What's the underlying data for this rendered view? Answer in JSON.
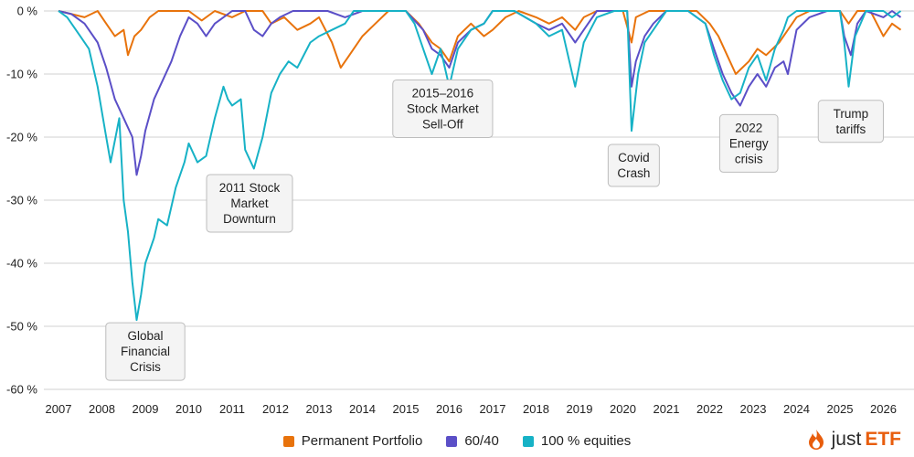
{
  "chart_data": {
    "type": "line",
    "ylim": [
      -60,
      0
    ],
    "xlim": [
      2007,
      2026.4
    ],
    "y_ticks": [
      "0 %",
      "-10 %",
      "-20 %",
      "-30 %",
      "-40 %",
      "-50 %",
      "-60 %"
    ],
    "y_tick_values": [
      0,
      -10,
      -20,
      -30,
      -40,
      -50,
      -60
    ],
    "x_ticks": [
      "2007",
      "2008",
      "2009",
      "2010",
      "2011",
      "2012",
      "2013",
      "2014",
      "2015",
      "2016",
      "2017",
      "2018",
      "2019",
      "2020",
      "2021",
      "2022",
      "2023",
      "2024",
      "2025",
      "2026"
    ],
    "grid": true,
    "legend": "bottom",
    "series": [
      {
        "name": "Permanent Portfolio",
        "color": "#e8730c",
        "points": [
          [
            2007.0,
            0
          ],
          [
            2007.3,
            -0.5
          ],
          [
            2007.6,
            -1
          ],
          [
            2007.9,
            0
          ],
          [
            2008.1,
            -2
          ],
          [
            2008.3,
            -4
          ],
          [
            2008.5,
            -3
          ],
          [
            2008.6,
            -7
          ],
          [
            2008.75,
            -4
          ],
          [
            2008.9,
            -3
          ],
          [
            2009.1,
            -1
          ],
          [
            2009.3,
            0
          ],
          [
            2009.6,
            0
          ],
          [
            2010.0,
            0
          ],
          [
            2010.3,
            -1.5
          ],
          [
            2010.6,
            0
          ],
          [
            2011.0,
            -1
          ],
          [
            2011.3,
            0
          ],
          [
            2011.7,
            0
          ],
          [
            2011.9,
            -2
          ],
          [
            2012.2,
            -1
          ],
          [
            2012.5,
            -3
          ],
          [
            2012.8,
            -2
          ],
          [
            2013.0,
            -1
          ],
          [
            2013.3,
            -5
          ],
          [
            2013.5,
            -9
          ],
          [
            2013.7,
            -7
          ],
          [
            2014.0,
            -4
          ],
          [
            2014.3,
            -2
          ],
          [
            2014.6,
            0
          ],
          [
            2015.0,
            0
          ],
          [
            2015.3,
            -2
          ],
          [
            2015.6,
            -5
          ],
          [
            2015.8,
            -6
          ],
          [
            2016.0,
            -8
          ],
          [
            2016.2,
            -4
          ],
          [
            2016.5,
            -2
          ],
          [
            2016.8,
            -4
          ],
          [
            2017.0,
            -3
          ],
          [
            2017.3,
            -1
          ],
          [
            2017.6,
            0
          ],
          [
            2018.0,
            -1
          ],
          [
            2018.3,
            -2
          ],
          [
            2018.6,
            -1
          ],
          [
            2018.9,
            -3
          ],
          [
            2019.1,
            -1
          ],
          [
            2019.4,
            0
          ],
          [
            2019.8,
            0
          ],
          [
            2020.0,
            0
          ],
          [
            2020.2,
            -5
          ],
          [
            2020.3,
            -1
          ],
          [
            2020.6,
            0
          ],
          [
            2021.0,
            0
          ],
          [
            2021.3,
            0
          ],
          [
            2021.7,
            0
          ],
          [
            2022.0,
            -2
          ],
          [
            2022.2,
            -4
          ],
          [
            2022.4,
            -7
          ],
          [
            2022.6,
            -10
          ],
          [
            2022.75,
            -9
          ],
          [
            2022.9,
            -8
          ],
          [
            2023.1,
            -6
          ],
          [
            2023.3,
            -7
          ],
          [
            2023.6,
            -5
          ],
          [
            2023.8,
            -3
          ],
          [
            2024.0,
            -1
          ],
          [
            2024.3,
            0
          ],
          [
            2024.7,
            0
          ],
          [
            2025.0,
            0
          ],
          [
            2025.2,
            -2
          ],
          [
            2025.4,
            0
          ],
          [
            2025.7,
            0
          ],
          [
            2026.0,
            -4
          ],
          [
            2026.2,
            -2
          ],
          [
            2026.4,
            -3
          ]
        ]
      },
      {
        "name": "60/40",
        "color": "#5b4fc7",
        "points": [
          [
            2007.0,
            0
          ],
          [
            2007.3,
            -0.5
          ],
          [
            2007.6,
            -2
          ],
          [
            2007.9,
            -5
          ],
          [
            2008.1,
            -9
          ],
          [
            2008.3,
            -14
          ],
          [
            2008.5,
            -17
          ],
          [
            2008.7,
            -20
          ],
          [
            2008.8,
            -26
          ],
          [
            2008.9,
            -23
          ],
          [
            2009.0,
            -19
          ],
          [
            2009.2,
            -14
          ],
          [
            2009.4,
            -11
          ],
          [
            2009.6,
            -8
          ],
          [
            2009.8,
            -4
          ],
          [
            2010.0,
            -1
          ],
          [
            2010.2,
            -2
          ],
          [
            2010.4,
            -4
          ],
          [
            2010.6,
            -2
          ],
          [
            2010.8,
            -1
          ],
          [
            2011.0,
            0
          ],
          [
            2011.3,
            0
          ],
          [
            2011.5,
            -3
          ],
          [
            2011.7,
            -4
          ],
          [
            2011.9,
            -2
          ],
          [
            2012.1,
            -1
          ],
          [
            2012.4,
            0
          ],
          [
            2012.8,
            0
          ],
          [
            2013.2,
            0
          ],
          [
            2013.6,
            -1
          ],
          [
            2014.0,
            0
          ],
          [
            2014.5,
            0
          ],
          [
            2015.0,
            0
          ],
          [
            2015.4,
            -3
          ],
          [
            2015.6,
            -6
          ],
          [
            2015.8,
            -7
          ],
          [
            2016.0,
            -9
          ],
          [
            2016.2,
            -5
          ],
          [
            2016.5,
            -3
          ],
          [
            2016.8,
            -2
          ],
          [
            2017.0,
            0
          ],
          [
            2017.5,
            0
          ],
          [
            2018.0,
            -2
          ],
          [
            2018.3,
            -3
          ],
          [
            2018.6,
            -2
          ],
          [
            2018.9,
            -5
          ],
          [
            2019.1,
            -3
          ],
          [
            2019.4,
            0
          ],
          [
            2019.8,
            0
          ],
          [
            2020.1,
            0
          ],
          [
            2020.2,
            -12
          ],
          [
            2020.3,
            -8
          ],
          [
            2020.5,
            -4
          ],
          [
            2020.7,
            -2
          ],
          [
            2021.0,
            0
          ],
          [
            2021.5,
            0
          ],
          [
            2021.9,
            -2
          ],
          [
            2022.1,
            -6
          ],
          [
            2022.3,
            -10
          ],
          [
            2022.5,
            -13
          ],
          [
            2022.7,
            -15
          ],
          [
            2022.9,
            -12
          ],
          [
            2023.1,
            -10
          ],
          [
            2023.3,
            -12
          ],
          [
            2023.5,
            -9
          ],
          [
            2023.7,
            -8
          ],
          [
            2023.8,
            -10
          ],
          [
            2024.0,
            -3
          ],
          [
            2024.3,
            -1
          ],
          [
            2024.7,
            0
          ],
          [
            2025.0,
            0
          ],
          [
            2025.1,
            -4
          ],
          [
            2025.25,
            -7
          ],
          [
            2025.4,
            -2
          ],
          [
            2025.6,
            0
          ],
          [
            2026.0,
            -1
          ],
          [
            2026.2,
            0
          ],
          [
            2026.4,
            -1
          ]
        ]
      },
      {
        "name": "100 % equities",
        "color": "#17b2c6",
        "points": [
          [
            2007.0,
            0
          ],
          [
            2007.2,
            -1
          ],
          [
            2007.5,
            -4
          ],
          [
            2007.7,
            -6
          ],
          [
            2007.9,
            -12
          ],
          [
            2008.1,
            -20
          ],
          [
            2008.2,
            -24
          ],
          [
            2008.4,
            -17
          ],
          [
            2008.5,
            -30
          ],
          [
            2008.6,
            -35
          ],
          [
            2008.7,
            -43
          ],
          [
            2008.8,
            -49
          ],
          [
            2008.9,
            -45
          ],
          [
            2009.0,
            -40
          ],
          [
            2009.2,
            -36
          ],
          [
            2009.3,
            -33
          ],
          [
            2009.5,
            -34
          ],
          [
            2009.7,
            -28
          ],
          [
            2009.9,
            -24
          ],
          [
            2010.0,
            -21
          ],
          [
            2010.2,
            -24
          ],
          [
            2010.4,
            -23
          ],
          [
            2010.6,
            -17
          ],
          [
            2010.8,
            -12
          ],
          [
            2010.9,
            -14
          ],
          [
            2011.0,
            -15
          ],
          [
            2011.2,
            -14
          ],
          [
            2011.3,
            -22
          ],
          [
            2011.5,
            -25
          ],
          [
            2011.7,
            -20
          ],
          [
            2011.9,
            -13
          ],
          [
            2012.1,
            -10
          ],
          [
            2012.3,
            -8
          ],
          [
            2012.5,
            -9
          ],
          [
            2012.8,
            -5
          ],
          [
            2013.0,
            -4
          ],
          [
            2013.3,
            -3
          ],
          [
            2013.6,
            -2
          ],
          [
            2013.8,
            0
          ],
          [
            2014.2,
            0
          ],
          [
            2014.6,
            0
          ],
          [
            2015.0,
            0
          ],
          [
            2015.2,
            -2
          ],
          [
            2015.4,
            -6
          ],
          [
            2015.6,
            -10
          ],
          [
            2015.8,
            -6
          ],
          [
            2016.0,
            -12
          ],
          [
            2016.2,
            -6
          ],
          [
            2016.5,
            -3
          ],
          [
            2016.8,
            -2
          ],
          [
            2017.0,
            0
          ],
          [
            2017.5,
            0
          ],
          [
            2018.0,
            -2
          ],
          [
            2018.3,
            -4
          ],
          [
            2018.6,
            -3
          ],
          [
            2018.9,
            -12
          ],
          [
            2019.1,
            -5
          ],
          [
            2019.4,
            -1
          ],
          [
            2019.8,
            0
          ],
          [
            2020.1,
            0
          ],
          [
            2020.2,
            -19
          ],
          [
            2020.35,
            -10
          ],
          [
            2020.5,
            -5
          ],
          [
            2020.7,
            -3
          ],
          [
            2021.0,
            0
          ],
          [
            2021.5,
            0
          ],
          [
            2021.9,
            -2
          ],
          [
            2022.1,
            -7
          ],
          [
            2022.3,
            -11
          ],
          [
            2022.5,
            -14
          ],
          [
            2022.7,
            -13
          ],
          [
            2022.9,
            -9
          ],
          [
            2023.1,
            -7
          ],
          [
            2023.3,
            -11
          ],
          [
            2023.5,
            -6
          ],
          [
            2023.7,
            -3
          ],
          [
            2023.8,
            -1
          ],
          [
            2024.0,
            0
          ],
          [
            2024.5,
            0
          ],
          [
            2025.0,
            0
          ],
          [
            2025.1,
            -5
          ],
          [
            2025.2,
            -12
          ],
          [
            2025.35,
            -4
          ],
          [
            2025.6,
            0
          ],
          [
            2026.0,
            0
          ],
          [
            2026.2,
            -1
          ],
          [
            2026.4,
            0
          ]
        ]
      }
    ],
    "annotations": [
      {
        "lines": [
          "Global",
          "Financial",
          "Crisis"
        ],
        "x": 2009.0,
        "y": -54
      },
      {
        "lines": [
          "2011 Stock",
          "Market",
          "Downturn"
        ],
        "x": 2011.4,
        "y": -30.5
      },
      {
        "lines": [
          "2015–2016",
          "Stock Market",
          "Sell-Off"
        ],
        "x": 2015.85,
        "y": -15.5
      },
      {
        "lines": [
          "Covid",
          "Crash"
        ],
        "x": 2020.25,
        "y": -24.5
      },
      {
        "lines": [
          "2022",
          "Energy",
          "crisis"
        ],
        "x": 2022.9,
        "y": -21
      },
      {
        "lines": [
          "Trump",
          "tariffs"
        ],
        "x": 2025.25,
        "y": -17.5
      }
    ]
  },
  "legend_items": [
    "Permanent Portfolio",
    "60/40",
    "100 % equities"
  ],
  "logo": {
    "part1": "just",
    "part2": "ETF"
  }
}
